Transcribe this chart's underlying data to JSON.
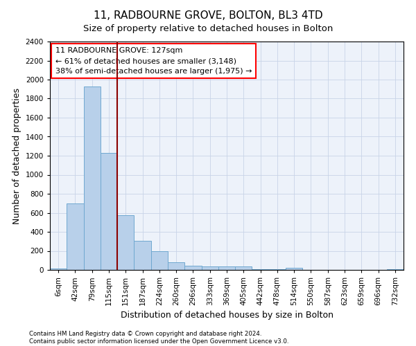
{
  "title": "11, RADBOURNE GROVE, BOLTON, BL3 4TD",
  "subtitle": "Size of property relative to detached houses in Bolton",
  "xlabel": "Distribution of detached houses by size in Bolton",
  "ylabel": "Number of detached properties",
  "categories": [
    "6sqm",
    "42sqm",
    "79sqm",
    "115sqm",
    "151sqm",
    "187sqm",
    "224sqm",
    "260sqm",
    "296sqm",
    "333sqm",
    "369sqm",
    "405sqm",
    "442sqm",
    "478sqm",
    "514sqm",
    "550sqm",
    "587sqm",
    "623sqm",
    "659sqm",
    "696sqm",
    "732sqm"
  ],
  "values": [
    15,
    700,
    1930,
    1230,
    575,
    305,
    200,
    80,
    45,
    37,
    37,
    35,
    5,
    5,
    20,
    0,
    0,
    0,
    0,
    0,
    5
  ],
  "bar_color": "#b8d0ea",
  "bar_edge_color": "#6fa8d0",
  "property_line_bar_index": 3,
  "annotation_title": "11 RADBOURNE GROVE: 127sqm",
  "annotation_line1": "← 61% of detached houses are smaller (3,148)",
  "annotation_line2": "38% of semi-detached houses are larger (1,975) →",
  "vline_color": "#8b0000",
  "ylim": [
    0,
    2400
  ],
  "yticks": [
    0,
    200,
    400,
    600,
    800,
    1000,
    1200,
    1400,
    1600,
    1800,
    2000,
    2200,
    2400
  ],
  "footer_line1": "Contains HM Land Registry data © Crown copyright and database right 2024.",
  "footer_line2": "Contains public sector information licensed under the Open Government Licence v3.0.",
  "title_fontsize": 11,
  "axis_label_fontsize": 9,
  "tick_fontsize": 7.5,
  "annotation_fontsize": 8,
  "background_color": "#ffffff",
  "plot_bg_color": "#edf2fa",
  "grid_color": "#c8d4e8"
}
